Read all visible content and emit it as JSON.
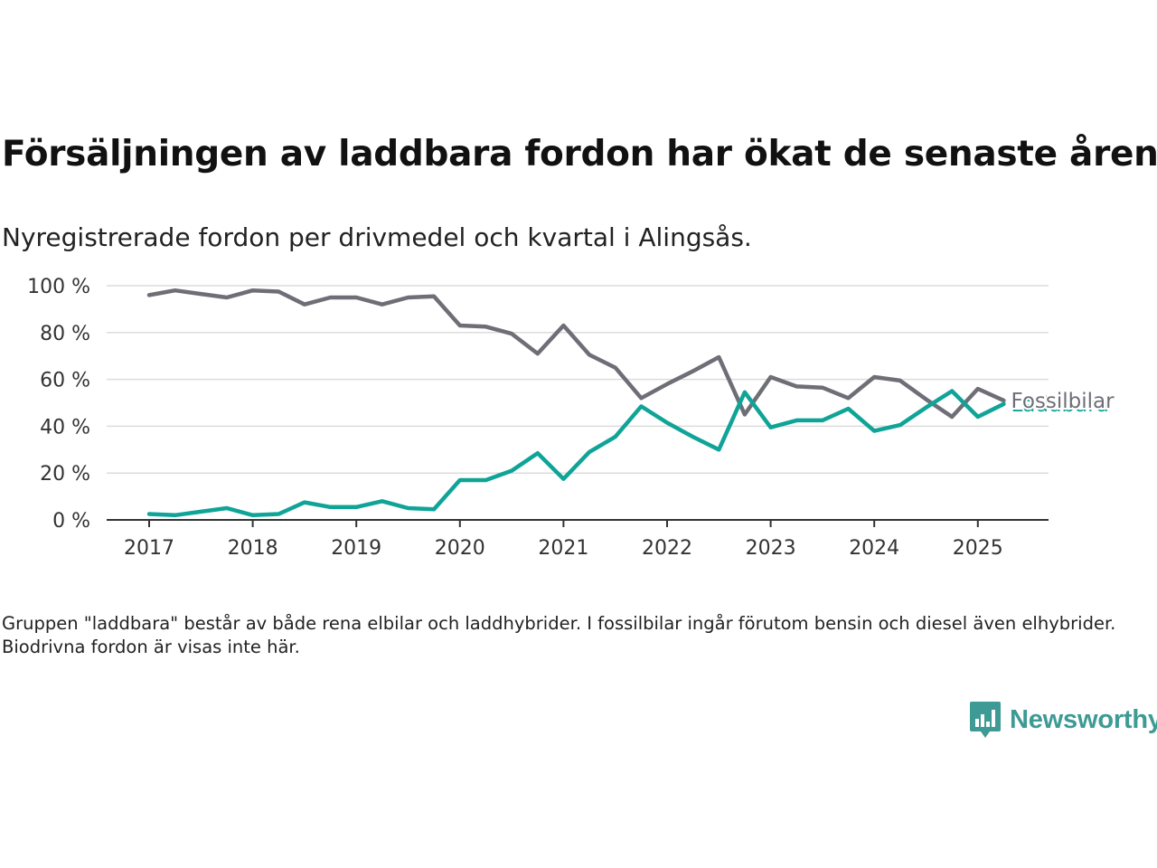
{
  "title": "Försäljningen av laddbara fordon har ökat de senaste åren",
  "subtitle": "Nyregistrerade fordon per drivmedel och kvartal i Alingsås.",
  "note": "Gruppen \"laddbara\" består av både rena elbilar och laddhybrider. I fossilbilar ingår förutom bensin och diesel även elhybrider. Biodrivna fordon är visas inte här.",
  "brand": {
    "name": "Newsworthy",
    "icon": "bar-chart-speech-bubble-icon",
    "color": "#3d9a94"
  },
  "chart_data": {
    "type": "line",
    "x": [
      "2017Q1",
      "2017Q2",
      "2017Q3",
      "2017Q4",
      "2018Q1",
      "2018Q2",
      "2018Q3",
      "2018Q4",
      "2019Q1",
      "2019Q2",
      "2019Q3",
      "2019Q4",
      "2020Q1",
      "2020Q2",
      "2020Q3",
      "2020Q4",
      "2021Q1",
      "2021Q2",
      "2021Q3",
      "2021Q4",
      "2022Q1",
      "2022Q2",
      "2022Q3",
      "2022Q4",
      "2023Q1",
      "2023Q2",
      "2023Q3",
      "2023Q4",
      "2024Q1",
      "2024Q2",
      "2024Q3",
      "2024Q4",
      "2025Q1",
      "2025Q2"
    ],
    "x_ticks": [
      "2017",
      "2018",
      "2019",
      "2020",
      "2021",
      "2022",
      "2023",
      "2024",
      "2025"
    ],
    "y_ticks": [
      "0 %",
      "20 %",
      "40 %",
      "60 %",
      "80 %",
      "100 %"
    ],
    "ylim": [
      0,
      100
    ],
    "grid": true,
    "legend_placement": "line-end labels",
    "series": [
      {
        "name": "Fossilbilar",
        "color": "#6e6e76",
        "values": [
          96,
          98,
          96.5,
          95,
          98,
          97.5,
          92,
          95,
          95,
          92,
          95,
          95.5,
          83,
          82.5,
          79.5,
          71,
          83,
          70.5,
          65,
          52,
          58,
          63.5,
          69.5,
          45,
          61,
          57,
          56.5,
          52,
          61,
          59.5,
          51.5,
          44,
          56,
          51
        ]
      },
      {
        "name": "Laddbara",
        "color": "#0fa497",
        "values": [
          2.5,
          2,
          3.5,
          5,
          2,
          2.5,
          7.5,
          5.5,
          5.5,
          8,
          5,
          4.5,
          17,
          17,
          21,
          28.5,
          17.5,
          29,
          35.5,
          48.5,
          41.5,
          35.5,
          30,
          54.5,
          39.5,
          42.5,
          42.5,
          47.5,
          38,
          40.5,
          48,
          55,
          44,
          49.5
        ]
      }
    ]
  }
}
